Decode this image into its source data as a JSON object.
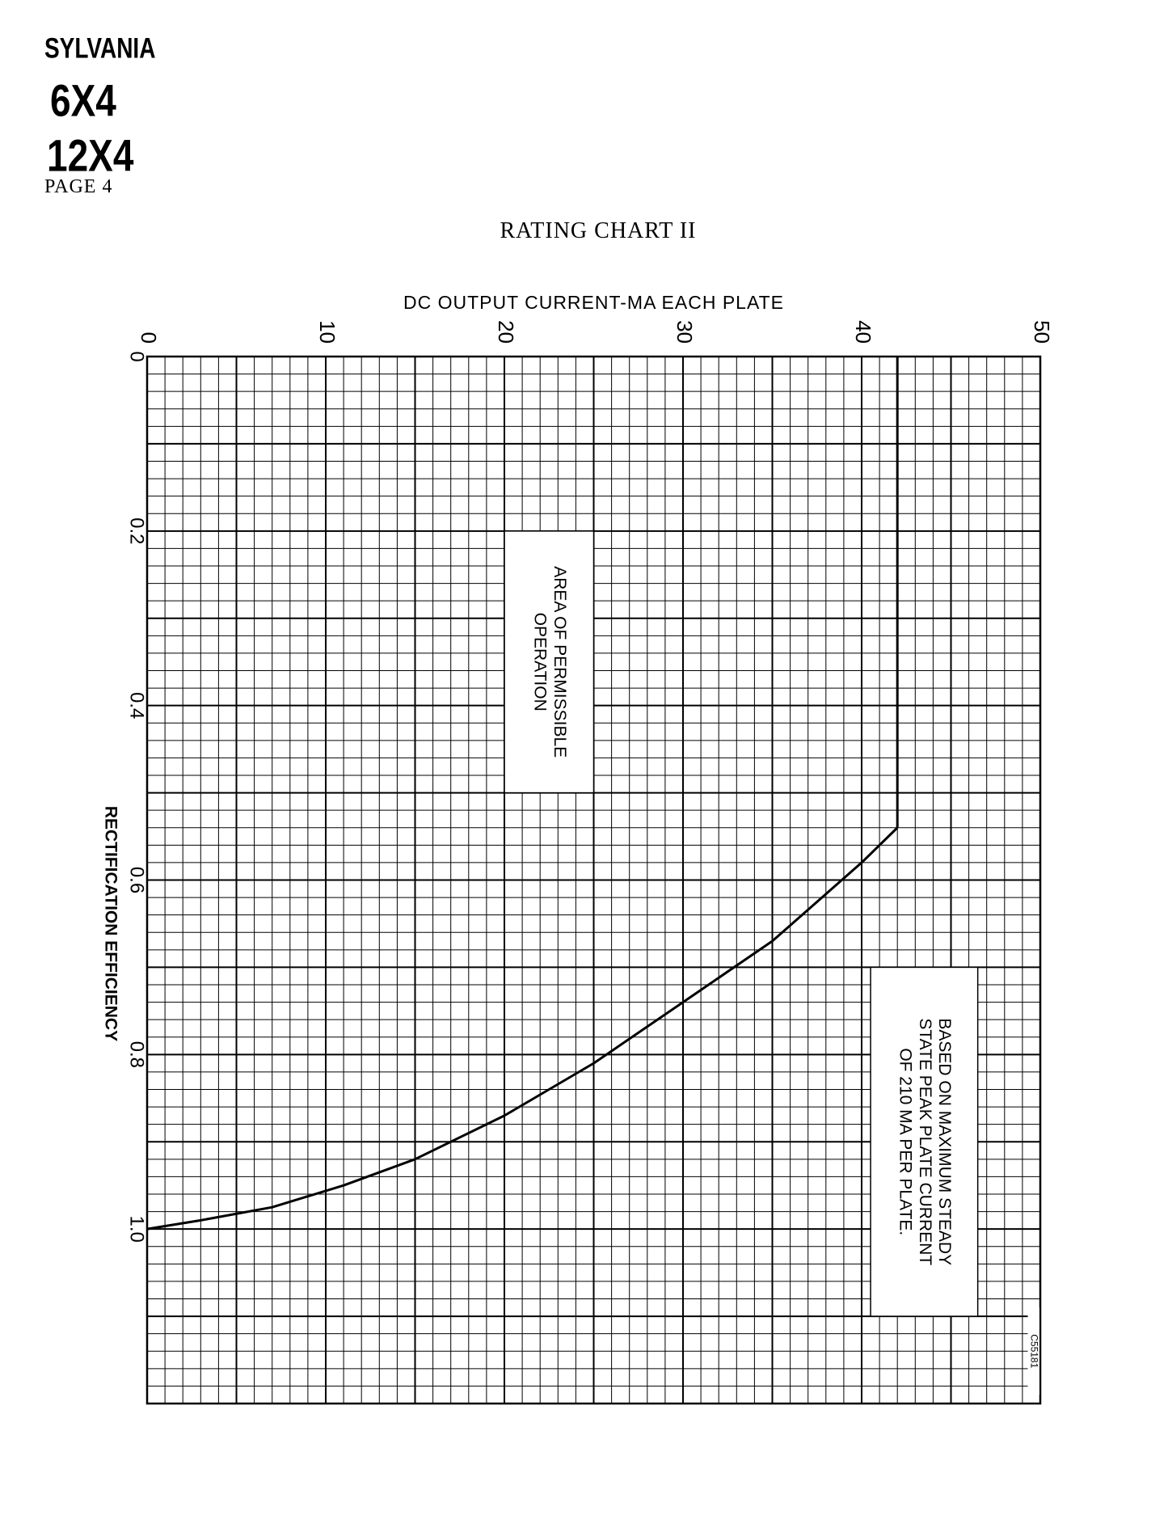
{
  "header": {
    "brand": "SYLVANIA",
    "tube_a": "6X4",
    "tube_b": "12X4",
    "page": "PAGE 4"
  },
  "title": "RATING CHART II",
  "chart_data": {
    "type": "line",
    "title": "RATING CHART II",
    "xlabel": "DC OUTPUT CURRENT-MA EACH PLATE",
    "ylabel": "RECTIFICATION EFFICIENCY",
    "x_ticks": [
      "0",
      "10",
      "20",
      "30",
      "40",
      "50"
    ],
    "y_ticks": [
      "0",
      "0.2",
      "0.4",
      "0.6",
      "0.8",
      "1.0"
    ],
    "xlim": [
      0,
      50
    ],
    "ylim": [
      0,
      1.2
    ],
    "y_inverted": true,
    "grid": true,
    "orientation": "page rotated 90 degrees",
    "series": [
      {
        "x": [
          0,
          3,
          7,
          11,
          15,
          20,
          25,
          30,
          35,
          40,
          42
        ],
        "y": [
          1.0,
          0.99,
          0.975,
          0.95,
          0.92,
          0.87,
          0.81,
          0.74,
          0.67,
          0.58,
          0.54
        ],
        "color": "#000000"
      },
      {
        "x": [
          42,
          42
        ],
        "y": [
          0.54,
          0
        ],
        "color": "#000000"
      }
    ],
    "annotations": [
      {
        "text": [
          "AREA OF PERMISSIBLE",
          "OPERATION"
        ]
      },
      {
        "text": [
          "BASED ON MAXIMUM STEADY",
          "STATE PEAK PLATE CURRENT",
          "OF 210 MA PER PLATE."
        ]
      },
      {
        "text": [
          "C55181"
        ]
      }
    ]
  }
}
